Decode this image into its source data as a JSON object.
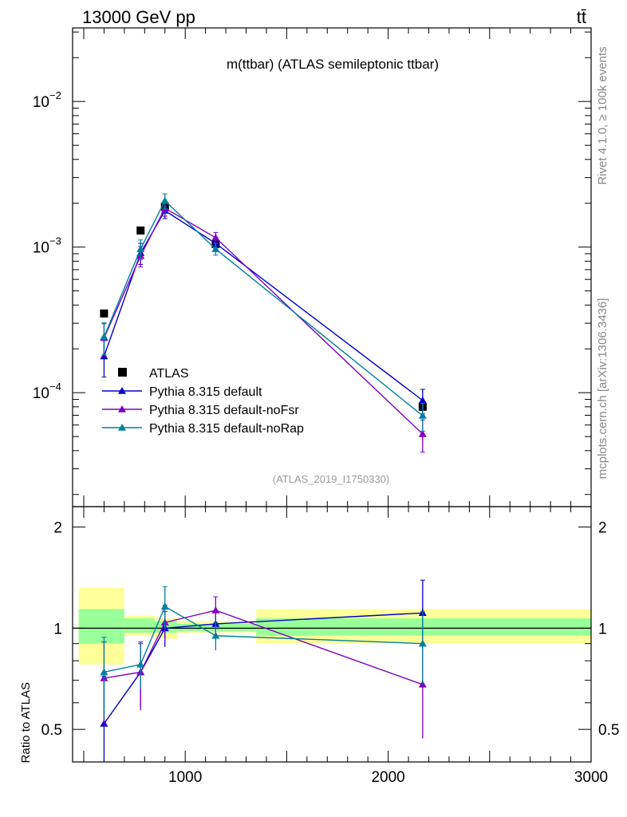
{
  "header": {
    "left": "13000 GeV pp",
    "right": "tt̄"
  },
  "side": {
    "rivet": "Rivet 4.1.0, ≥ 100k events",
    "mcplots": "mcplots.cern.ch [arXiv:1306.3436]"
  },
  "chart_data": {
    "type": "scatter",
    "title": "m(ttbar) (ATLAS semileptonic ttbar)",
    "analysis_tag": "(ATLAS_2019_I1750330)",
    "xlabel": "",
    "ylabel_top": "",
    "ylabel_ratio": "Ratio to ATLAS",
    "xlim": [
      445,
      3000
    ],
    "ylim_top": [
      1.65e-05,
      0.032
    ],
    "ylog_top": true,
    "ylim_ratio": [
      0.4,
      2.3
    ],
    "ylog_ratio": true,
    "x_ticks": [
      1000,
      2000,
      3000
    ],
    "x_tick_labels": [
      "1000",
      "2000",
      "3000"
    ],
    "y_ticks_top": [
      0.0001,
      0.001,
      0.01
    ],
    "y_tick_labels_top": [
      {
        "base": "10",
        "exp": "−4"
      },
      {
        "base": "10",
        "exp": "−3"
      },
      {
        "base": "10",
        "exp": "−2"
      }
    ],
    "y_ticks_ratio": [
      0.5,
      1,
      2
    ],
    "y_tick_labels_ratio": [
      "0.5",
      "1",
      "2"
    ],
    "data": {
      "name": "ATLAS",
      "color": "#000000",
      "bins": [
        [
          475,
          700
        ],
        [
          700,
          850
        ],
        [
          850,
          960
        ],
        [
          960,
          1350
        ],
        [
          1350,
          3000
        ]
      ],
      "x": [
        600,
        780,
        900,
        1150,
        2170
      ],
      "y": [
        0.00035,
        0.0013,
        0.0019,
        0.00105,
        8e-05
      ],
      "band_inner": [
        [
          0.9,
          1.14
        ],
        [
          0.97,
          1.07
        ],
        [
          0.97,
          1.05
        ],
        [
          0.98,
          1.03
        ],
        [
          0.95,
          1.07
        ]
      ],
      "band_outer": [
        [
          0.78,
          1.32
        ],
        [
          0.95,
          1.09
        ],
        [
          0.93,
          1.07
        ],
        [
          0.97,
          1.05
        ],
        [
          0.9,
          1.14
        ]
      ]
    },
    "series": [
      {
        "name": "Pythia 8.315 default",
        "color": "#0000cc",
        "x": [
          600,
          780,
          900,
          1150,
          2170
        ],
        "y": [
          0.000178,
          0.00091,
          0.00178,
          0.00106,
          8.85e-05
        ],
        "yerr": [
          5e-05,
          0.00015,
          0.00021,
          9e-05,
          1.7e-05
        ],
        "ratio": [
          0.52,
          0.74,
          1.0,
          1.03,
          1.11
        ],
        "ratio_err": [
          0.2,
          0.16,
          0.12,
          0.09,
          0.28
        ]
      },
      {
        "name": "Pythia 8.315 default-noFsr",
        "color": "#8000c0",
        "x": [
          600,
          780,
          900,
          1150,
          2170
        ],
        "y": [
          0.000238,
          0.00087,
          0.00185,
          0.00116,
          5.2e-05
        ],
        "yerr": [
          6e-05,
          0.00014,
          0.00022,
          0.0001,
          1.3e-05
        ],
        "ratio": [
          0.71,
          0.74,
          1.04,
          1.13,
          0.68
        ],
        "ratio_err": [
          0.2,
          0.17,
          0.13,
          0.11,
          0.21
        ]
      },
      {
        "name": "Pythia 8.315 default-noRap",
        "color": "#0080a0",
        "x": [
          600,
          780,
          900,
          1150,
          2170
        ],
        "y": [
          0.000242,
          0.00097,
          0.00208,
          0.00097,
          6.95e-05
        ],
        "yerr": [
          6e-05,
          0.00015,
          0.00024,
          9e-05,
          1.5e-05
        ],
        "ratio": [
          0.74,
          0.78,
          1.16,
          0.95,
          0.9
        ],
        "ratio_err": [
          0.2,
          0.12,
          0.17,
          0.09,
          0.22
        ]
      }
    ],
    "legend_position": "bottom-left"
  }
}
